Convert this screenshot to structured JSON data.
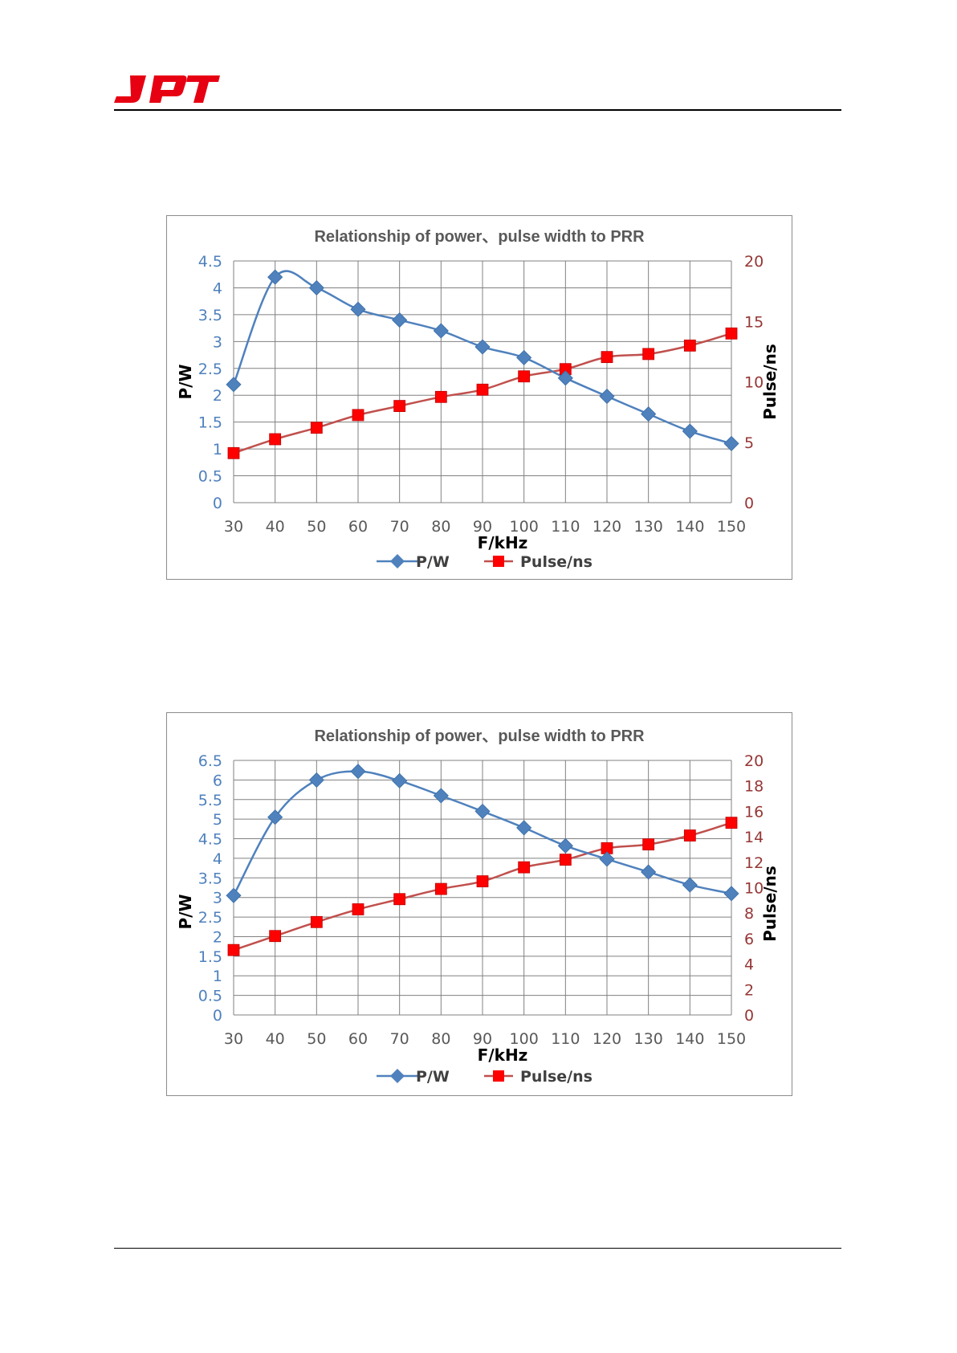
{
  "header": {
    "logo_text": "JPT"
  },
  "colors": {
    "power": "#4f81bd",
    "pulse": "#c0504d",
    "pulse_marker": "#ff0000",
    "left_ticks": "#4f81bd",
    "right_ticks": "#953735",
    "grid": "#808080"
  },
  "chart_data": [
    {
      "type": "line",
      "title": "Relationship of  power、pulse width  to PRR",
      "xlabel": "F/kHz",
      "ylabel": "P/W",
      "y2label": "Pulse/ns",
      "x": [
        30,
        40,
        50,
        60,
        70,
        80,
        90,
        100,
        110,
        120,
        130,
        140,
        150
      ],
      "x_ticks": [
        "30",
        "40",
        "50",
        "60",
        "70",
        "80",
        "90",
        "100",
        "110",
        "120",
        "130",
        "140",
        "150"
      ],
      "ylim": [
        0,
        4.5
      ],
      "y_ticks": [
        "0",
        "0.5",
        "1",
        "1.5",
        "2",
        "2.5",
        "3",
        "3.5",
        "4",
        "4.5"
      ],
      "y2lim": [
        0,
        20
      ],
      "y2_ticks": [
        "0",
        "5",
        "10",
        "15",
        "20"
      ],
      "grid": true,
      "legend_position": "bottom",
      "series": [
        {
          "name": "P/W",
          "axis": "left",
          "marker": "diamond",
          "values": [
            2.2,
            4.2,
            4.0,
            3.6,
            3.4,
            3.2,
            2.9,
            2.7,
            2.32,
            1.98,
            1.65,
            1.33,
            1.1
          ]
        },
        {
          "name": "Pulse/ns",
          "axis": "right",
          "marker": "square",
          "values": [
            4.1,
            5.25,
            6.2,
            7.25,
            8.0,
            8.75,
            9.35,
            10.45,
            11.05,
            12.05,
            12.3,
            13.0,
            14.0
          ]
        }
      ]
    },
    {
      "type": "line",
      "title": "Relationship of  power、pulse width to PRR",
      "xlabel": "F/kHz",
      "ylabel": "P/W",
      "y2label": "Pulse/ns",
      "x": [
        30,
        40,
        50,
        60,
        70,
        80,
        90,
        100,
        110,
        120,
        130,
        140,
        150
      ],
      "x_ticks": [
        "30",
        "40",
        "50",
        "60",
        "70",
        "80",
        "90",
        "100",
        "110",
        "120",
        "130",
        "140",
        "150"
      ],
      "ylim": [
        0,
        6.5
      ],
      "y_ticks": [
        "0",
        "0.5",
        "1",
        "1.5",
        "2",
        "2.5",
        "3",
        "3.5",
        "4",
        "4.5",
        "5",
        "5.5",
        "6",
        "6.5"
      ],
      "y2lim": [
        0,
        20
      ],
      "y2_ticks": [
        "0",
        "2",
        "4",
        "6",
        "8",
        "10",
        "12",
        "14",
        "16",
        "18",
        "20"
      ],
      "grid": true,
      "legend_position": "bottom",
      "series": [
        {
          "name": "P/W",
          "axis": "left",
          "marker": "diamond",
          "values": [
            3.05,
            5.05,
            6.0,
            6.22,
            5.98,
            5.6,
            5.2,
            4.78,
            4.32,
            3.98,
            3.65,
            3.32,
            3.1
          ]
        },
        {
          "name": "Pulse/ns",
          "axis": "right",
          "marker": "square",
          "values": [
            5.1,
            6.2,
            7.3,
            8.3,
            9.1,
            9.9,
            10.5,
            11.6,
            12.2,
            13.1,
            13.4,
            14.1,
            15.1
          ]
        }
      ]
    }
  ]
}
